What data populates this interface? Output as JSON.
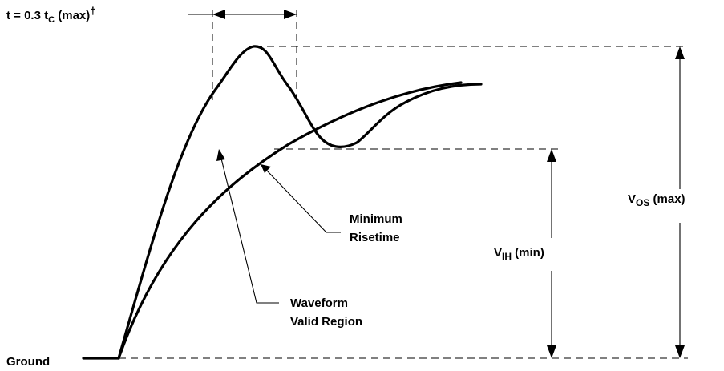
{
  "labels": {
    "timing_prefix": "t = 0.3 t",
    "timing_sub": "C",
    "timing_suffix": " (max)",
    "timing_dagger": "†",
    "vos_main": "V",
    "vos_sub": "OS",
    "vos_suffix": " (max)",
    "vih_main": "V",
    "vih_sub": "IH",
    "vih_suffix": " (min)",
    "minimum_risetime_line1": "Minimum",
    "minimum_risetime_line2": "Risetime",
    "waveform_line1": "Waveform",
    "waveform_line2": "Valid Region",
    "ground": "Ground"
  }
}
